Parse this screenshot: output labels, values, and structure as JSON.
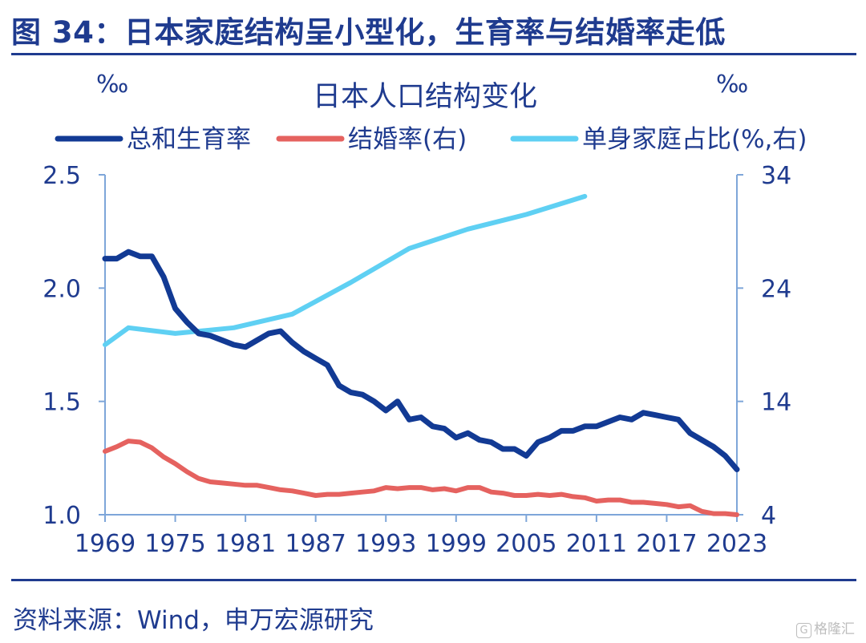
{
  "figure": {
    "title": "图 34：日本家庭结构呈小型化，生育率与结婚率走低",
    "source": "资料来源：Wind，申万宏源研究",
    "watermark": "格隆汇"
  },
  "colors": {
    "brand": "#1f3b8f",
    "fertility": "#123a94",
    "marriage": "#e5625f",
    "single_household": "#5fd0f3",
    "axis": "#7ea6d9"
  },
  "chart_data": {
    "type": "line",
    "title": "日本人口结构变化",
    "left_unit": "‰",
    "right_unit": "‰",
    "ylim_left": [
      1.0,
      2.5
    ],
    "ylim_right": [
      4,
      34
    ],
    "yticks_left": [
      "1.0",
      "1.5",
      "2.0",
      "2.5"
    ],
    "yticks_right": [
      "4",
      "14",
      "24",
      "34"
    ],
    "xlim": [
      1969,
      2023
    ],
    "xticks": [
      "1969",
      "1975",
      "1981",
      "1987",
      "1993",
      "1999",
      "2005",
      "2011",
      "2017",
      "2023"
    ],
    "grid": false,
    "legend_position": "top",
    "series": [
      {
        "name": "总和生育率",
        "axis": "left",
        "color": "#123a94",
        "x": [
          1969,
          1970,
          1971,
          1972,
          1973,
          1974,
          1975,
          1976,
          1977,
          1978,
          1979,
          1980,
          1981,
          1982,
          1983,
          1984,
          1985,
          1986,
          1987,
          1988,
          1989,
          1990,
          1991,
          1992,
          1993,
          1994,
          1995,
          1996,
          1997,
          1998,
          1999,
          2000,
          2001,
          2002,
          2003,
          2004,
          2005,
          2006,
          2007,
          2008,
          2009,
          2010,
          2011,
          2012,
          2013,
          2014,
          2015,
          2016,
          2017,
          2018,
          2019,
          2020,
          2021,
          2022,
          2023
        ],
        "values": [
          2.13,
          2.13,
          2.16,
          2.14,
          2.14,
          2.05,
          1.91,
          1.85,
          1.8,
          1.79,
          1.77,
          1.75,
          1.74,
          1.77,
          1.8,
          1.81,
          1.76,
          1.72,
          1.69,
          1.66,
          1.57,
          1.54,
          1.53,
          1.5,
          1.46,
          1.5,
          1.42,
          1.43,
          1.39,
          1.38,
          1.34,
          1.36,
          1.33,
          1.32,
          1.29,
          1.29,
          1.26,
          1.32,
          1.34,
          1.37,
          1.37,
          1.39,
          1.39,
          1.41,
          1.43,
          1.42,
          1.45,
          1.44,
          1.43,
          1.42,
          1.36,
          1.33,
          1.3,
          1.26,
          1.2
        ]
      },
      {
        "name": "结婚率(右)",
        "axis": "right",
        "color": "#e5625f",
        "x": [
          1969,
          1970,
          1971,
          1972,
          1973,
          1974,
          1975,
          1976,
          1977,
          1978,
          1979,
          1980,
          1981,
          1982,
          1983,
          1984,
          1985,
          1986,
          1987,
          1988,
          1989,
          1990,
          1991,
          1992,
          1993,
          1994,
          1995,
          1996,
          1997,
          1998,
          1999,
          2000,
          2001,
          2002,
          2003,
          2004,
          2005,
          2006,
          2007,
          2008,
          2009,
          2010,
          2011,
          2012,
          2013,
          2014,
          2015,
          2016,
          2017,
          2018,
          2019,
          2020,
          2021,
          2022,
          2023
        ],
        "values": [
          9.6,
          10.0,
          10.5,
          10.4,
          9.9,
          9.1,
          8.5,
          7.8,
          7.2,
          6.9,
          6.8,
          6.7,
          6.6,
          6.6,
          6.4,
          6.2,
          6.1,
          5.9,
          5.7,
          5.8,
          5.8,
          5.9,
          6.0,
          6.1,
          6.4,
          6.3,
          6.4,
          6.4,
          6.2,
          6.3,
          6.1,
          6.4,
          6.4,
          6.0,
          5.9,
          5.7,
          5.7,
          5.8,
          5.7,
          5.8,
          5.6,
          5.5,
          5.2,
          5.3,
          5.3,
          5.1,
          5.1,
          5.0,
          4.9,
          4.7,
          4.8,
          4.3,
          4.1,
          4.1,
          4.0
        ]
      },
      {
        "name": "单身家庭占比(%,右)",
        "axis": "right",
        "color": "#5fd0f3",
        "x": [
          1969,
          1971,
          1975,
          1980,
          1985,
          1990,
          1995,
          2000,
          2005,
          2010
        ],
        "values": [
          19.0,
          20.5,
          20.0,
          20.5,
          21.7,
          24.5,
          27.5,
          29.2,
          30.5,
          32.1
        ]
      }
    ]
  }
}
